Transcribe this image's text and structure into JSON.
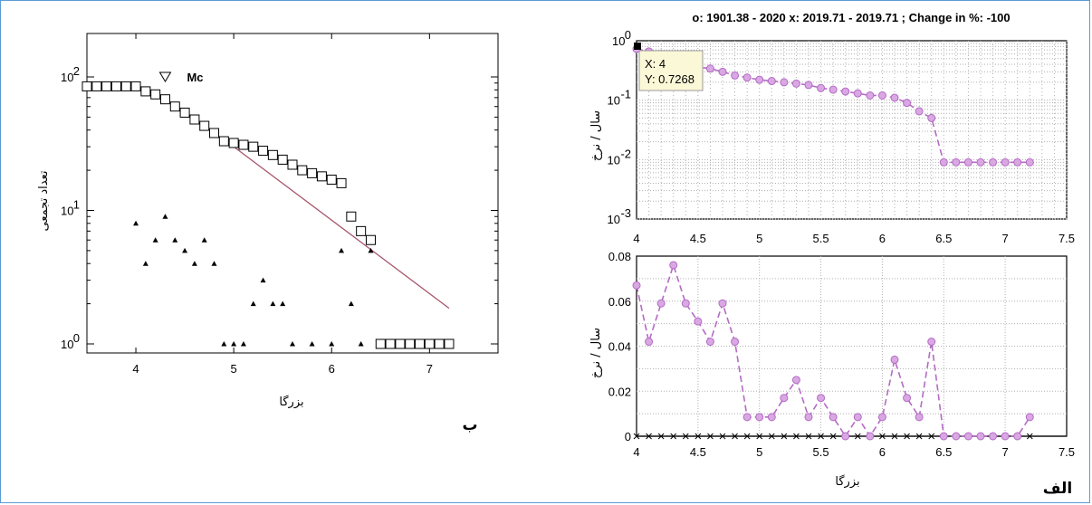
{
  "chart_data": [
    {
      "type": "scatter",
      "panel_letter": "ب",
      "xlabel": "بزرگا",
      "ylabel": "تعداد تجمعی",
      "yscale": "log",
      "xlim": [
        3.5,
        7.7
      ],
      "x_ticks": [
        "4",
        "5",
        "6",
        "7"
      ],
      "y_ticks": [
        {
          "base": "10",
          "exp": "2"
        },
        {
          "base": "10",
          "exp": "1"
        },
        {
          "base": "10",
          "exp": "0"
        }
      ],
      "mc_label": "Mc",
      "mc_marker": {
        "x": 4.3,
        "y": 100
      },
      "series": [
        {
          "marker": "square",
          "points": [
            [
              3.5,
              85
            ],
            [
              3.6,
              85
            ],
            [
              3.7,
              85
            ],
            [
              3.8,
              85
            ],
            [
              3.9,
              85
            ],
            [
              4.0,
              85
            ],
            [
              4.1,
              78
            ],
            [
              4.2,
              74
            ],
            [
              4.3,
              68
            ],
            [
              4.4,
              60
            ],
            [
              4.5,
              54
            ],
            [
              4.6,
              48
            ],
            [
              4.7,
              43
            ],
            [
              4.8,
              38
            ],
            [
              4.9,
              33
            ],
            [
              5.0,
              32
            ],
            [
              5.1,
              31
            ],
            [
              5.2,
              30
            ],
            [
              5.3,
              28
            ],
            [
              5.4,
              26
            ],
            [
              5.5,
              24
            ],
            [
              5.6,
              22
            ],
            [
              5.7,
              20
            ],
            [
              5.8,
              19
            ],
            [
              5.9,
              18
            ],
            [
              6.0,
              17
            ],
            [
              6.1,
              16
            ],
            [
              6.2,
              9
            ],
            [
              6.3,
              7
            ],
            [
              6.4,
              6
            ],
            [
              6.5,
              1
            ],
            [
              6.6,
              1
            ],
            [
              6.7,
              1
            ],
            [
              6.8,
              1
            ],
            [
              6.9,
              1
            ],
            [
              7.0,
              1
            ],
            [
              7.1,
              1
            ],
            [
              7.2,
              1
            ]
          ]
        },
        {
          "marker": "triangle",
          "points": [
            [
              4.0,
              8
            ],
            [
              4.1,
              4
            ],
            [
              4.2,
              6
            ],
            [
              4.3,
              9
            ],
            [
              4.4,
              6
            ],
            [
              4.5,
              5
            ],
            [
              4.6,
              4
            ],
            [
              4.7,
              6
            ],
            [
              4.8,
              4
            ],
            [
              4.9,
              1
            ],
            [
              5.0,
              1
            ],
            [
              5.1,
              1
            ],
            [
              5.2,
              2
            ],
            [
              5.3,
              3
            ],
            [
              5.4,
              2
            ],
            [
              5.5,
              2
            ],
            [
              5.6,
              1
            ],
            [
              5.8,
              1
            ],
            [
              6.0,
              1
            ],
            [
              6.1,
              5
            ],
            [
              6.2,
              2
            ],
            [
              6.3,
              1
            ],
            [
              6.4,
              5
            ]
          ]
        }
      ],
      "fit_line": [
        [
          5.0,
          30
        ],
        [
          7.2,
          1.85
        ]
      ],
      "colors": {
        "squares": "#000000",
        "triangles": "#000000",
        "fit_line": "#a5566b",
        "mc_text": "#1f2a9a"
      }
    },
    {
      "type": "line",
      "panel_letter": "الف",
      "header": "o: 1901.38 - 2020     x: 2019.71 - 2019.71 ; Change in %: -100",
      "xlabel": "بزرگا",
      "panels": [
        {
          "ylabel": "سال / نرخ",
          "yscale": "log",
          "xlim": [
            4,
            7.5
          ],
          "ylim": [
            0.001,
            1
          ],
          "x_ticks": [
            "4",
            "4.5",
            "5",
            "5.5",
            "6",
            "6.5",
            "7",
            "7.5"
          ],
          "y_ticks": [
            {
              "base": "10",
              "exp": "0"
            },
            {
              "base": "10",
              "exp": "-1"
            },
            {
              "base": "10",
              "exp": "-2"
            },
            {
              "base": "10",
              "exp": "-3"
            }
          ],
          "tooltip": {
            "x_text": "X: 4",
            "y_text": "Y: 0.7268"
          },
          "series": [
            {
              "marker": "circle",
              "points": [
                [
                  4.0,
                  0.7268
                ],
                [
                  4.1,
                  0.66
                ],
                [
                  4.2,
                  0.6
                ],
                [
                  4.3,
                  0.5
                ],
                [
                  4.4,
                  0.4
                ],
                [
                  4.5,
                  0.36
                ],
                [
                  4.6,
                  0.34
                ],
                [
                  4.7,
                  0.3
                ],
                [
                  4.8,
                  0.26
                ],
                [
                  4.9,
                  0.24
                ],
                [
                  5.0,
                  0.22
                ],
                [
                  5.1,
                  0.21
                ],
                [
                  5.2,
                  0.2
                ],
                [
                  5.3,
                  0.19
                ],
                [
                  5.4,
                  0.18
                ],
                [
                  5.5,
                  0.16
                ],
                [
                  5.6,
                  0.15
                ],
                [
                  5.7,
                  0.14
                ],
                [
                  5.8,
                  0.13
                ],
                [
                  5.9,
                  0.12
                ],
                [
                  6.0,
                  0.12
                ],
                [
                  6.1,
                  0.11
                ],
                [
                  6.2,
                  0.09
                ],
                [
                  6.3,
                  0.065
                ],
                [
                  6.4,
                  0.05
                ],
                [
                  6.5,
                  0.009
                ],
                [
                  6.6,
                  0.009
                ],
                [
                  6.7,
                  0.009
                ],
                [
                  6.8,
                  0.009
                ],
                [
                  6.9,
                  0.009
                ],
                [
                  7.0,
                  0.009
                ],
                [
                  7.1,
                  0.009
                ],
                [
                  7.2,
                  0.009
                ]
              ]
            }
          ]
        },
        {
          "ylabel": "سال / نرخ",
          "yscale": "linear",
          "xlim": [
            4,
            7.5
          ],
          "ylim": [
            0,
            0.08
          ],
          "x_ticks": [
            "4",
            "4.5",
            "5",
            "5.5",
            "6",
            "6.5",
            "7",
            "7.5"
          ],
          "y_ticks": [
            "0.08",
            "0.06",
            "0.04",
            "0.02",
            "0"
          ],
          "series": [
            {
              "marker": "circle",
              "points": [
                [
                  4.0,
                  0.067
                ],
                [
                  4.1,
                  0.042
                ],
                [
                  4.2,
                  0.059
                ],
                [
                  4.3,
                  0.076
                ],
                [
                  4.4,
                  0.059
                ],
                [
                  4.5,
                  0.051
                ],
                [
                  4.6,
                  0.042
                ],
                [
                  4.7,
                  0.059
                ],
                [
                  4.8,
                  0.042
                ],
                [
                  4.9,
                  0.0085
                ],
                [
                  5.0,
                  0.0085
                ],
                [
                  5.1,
                  0.0085
                ],
                [
                  5.2,
                  0.017
                ],
                [
                  5.3,
                  0.025
                ],
                [
                  5.4,
                  0.0085
                ],
                [
                  5.5,
                  0.017
                ],
                [
                  5.6,
                  0.0085
                ],
                [
                  5.7,
                  0
                ],
                [
                  5.8,
                  0.0085
                ],
                [
                  5.9,
                  0
                ],
                [
                  6.0,
                  0.0085
                ],
                [
                  6.1,
                  0.034
                ],
                [
                  6.2,
                  0.017
                ],
                [
                  6.3,
                  0.0085
                ],
                [
                  6.4,
                  0.042
                ],
                [
                  6.5,
                  0
                ],
                [
                  6.6,
                  0
                ],
                [
                  6.7,
                  0
                ],
                [
                  6.8,
                  0
                ],
                [
                  6.9,
                  0
                ],
                [
                  7.0,
                  0
                ],
                [
                  7.1,
                  0
                ],
                [
                  7.2,
                  0.0085
                ]
              ]
            },
            {
              "marker": "x",
              "points": [
                [
                  4.0,
                  0
                ],
                [
                  4.1,
                  0
                ],
                [
                  4.2,
                  0
                ],
                [
                  4.3,
                  0
                ],
                [
                  4.4,
                  0
                ],
                [
                  4.5,
                  0
                ],
                [
                  4.6,
                  0
                ],
                [
                  4.7,
                  0
                ],
                [
                  4.8,
                  0
                ],
                [
                  4.9,
                  0
                ],
                [
                  5.0,
                  0
                ],
                [
                  5.1,
                  0
                ],
                [
                  5.2,
                  0
                ],
                [
                  5.3,
                  0
                ],
                [
                  5.4,
                  0
                ],
                [
                  5.5,
                  0
                ],
                [
                  5.6,
                  0
                ],
                [
                  5.7,
                  0
                ],
                [
                  5.8,
                  0
                ],
                [
                  5.9,
                  0
                ],
                [
                  6.0,
                  0
                ],
                [
                  6.1,
                  0
                ],
                [
                  6.2,
                  0
                ],
                [
                  6.3,
                  0
                ],
                [
                  6.4,
                  0
                ],
                [
                  6.5,
                  0
                ],
                [
                  6.6,
                  0
                ],
                [
                  6.7,
                  0
                ],
                [
                  6.8,
                  0
                ],
                [
                  6.9,
                  0
                ],
                [
                  7.0,
                  0
                ],
                [
                  7.1,
                  0
                ],
                [
                  7.2,
                  0
                ]
              ]
            }
          ]
        }
      ],
      "colors": {
        "series": "#b46bc4",
        "marker_fill": "#d9a8e3",
        "grid": "#b0b0b0",
        "tooltip_bg": "#fbf8d8"
      }
    }
  ]
}
